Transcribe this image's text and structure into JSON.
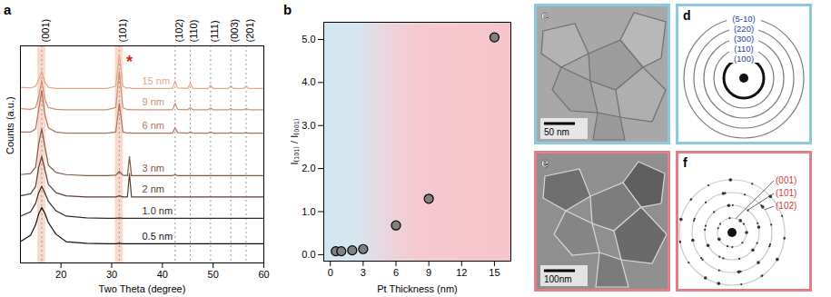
{
  "chart_data": [
    {
      "type": "line",
      "panel_label": "a",
      "xlabel": "Two Theta (degree)",
      "ylabel": "Counts (a.u.)",
      "x": [
        12,
        14,
        15,
        15.6,
        16.2,
        16.8,
        17.5,
        19,
        21,
        25,
        29,
        30.8,
        31.5,
        32.2,
        33.1,
        33.5,
        33.9,
        36,
        40,
        42,
        42.5,
        43,
        45,
        45.5,
        46,
        49,
        49.5,
        50,
        53,
        53.5,
        54,
        56,
        56.5,
        57,
        60
      ],
      "series": [
        {
          "name": "15 nm",
          "color": "#e3a78b",
          "values": [
            8.25,
            8.22,
            8.3,
            8.6,
            9.0,
            8.5,
            8.25,
            8.2,
            8.2,
            8.2,
            8.2,
            8.3,
            9.8,
            8.3,
            8.2,
            8.25,
            8.2,
            8.2,
            8.2,
            8.2,
            8.55,
            8.22,
            8.2,
            8.45,
            8.2,
            8.2,
            8.35,
            8.2,
            8.2,
            8.32,
            8.2,
            8.2,
            8.32,
            8.2,
            8.2
          ]
        },
        {
          "name": "9 nm",
          "color": "#cf8f72",
          "values": [
            7.25,
            7.22,
            7.3,
            7.8,
            8.6,
            7.7,
            7.3,
            7.22,
            7.2,
            7.2,
            7.2,
            7.3,
            9.0,
            7.3,
            7.2,
            7.22,
            7.2,
            7.2,
            7.2,
            7.2,
            7.5,
            7.22,
            7.2,
            7.3,
            7.2,
            7.2,
            7.28,
            7.2,
            7.2,
            7.25,
            7.2,
            7.2,
            7.25,
            7.2,
            7.2
          ]
        },
        {
          "name": "6 nm",
          "color": "#b0735a",
          "values": [
            6.15,
            6.15,
            6.3,
            7.2,
            8.1,
            7.0,
            6.35,
            6.15,
            6.1,
            6.1,
            6.1,
            6.15,
            7.5,
            6.15,
            6.1,
            6.12,
            6.1,
            6.1,
            6.1,
            6.1,
            6.35,
            6.12,
            6.1,
            6.15,
            6.1,
            6.1,
            6.15,
            6.1,
            6.1,
            6.12,
            6.1,
            6.1,
            6.12,
            6.1,
            6.1
          ]
        },
        {
          "name": "3 nm",
          "color": "#855744",
          "values": [
            4.15,
            4.2,
            4.5,
            5.6,
            6.3,
            5.5,
            4.6,
            4.25,
            4.15,
            4.1,
            4.1,
            4.12,
            4.3,
            4.12,
            4.1,
            5.0,
            4.1,
            4.1,
            4.1,
            4.1,
            4.15,
            4.1,
            4.1,
            4.1,
            4.1,
            4.1,
            4.1,
            4.1,
            4.1,
            4.1,
            4.1,
            4.1,
            4.1,
            4.1,
            4.1
          ]
        },
        {
          "name": "2 nm",
          "color": "#5c3e30",
          "values": [
            3.15,
            3.25,
            3.6,
            4.5,
            5.0,
            4.4,
            3.7,
            3.3,
            3.15,
            3.1,
            3.1,
            3.1,
            3.15,
            3.1,
            3.1,
            4.2,
            3.1,
            3.1,
            3.1,
            3.1,
            3.1,
            3.1,
            3.1,
            3.1,
            3.1,
            3.1,
            3.1,
            3.1,
            3.1,
            3.1,
            3.1,
            3.1,
            3.1,
            3.1,
            3.1
          ]
        },
        {
          "name": "1.0 nm",
          "color": "#382921",
          "values": [
            2.2,
            2.4,
            2.8,
            3.3,
            3.6,
            3.3,
            2.9,
            2.45,
            2.2,
            2.12,
            2.1,
            2.1,
            2.12,
            2.1,
            2.1,
            2.1,
            2.1,
            2.1,
            2.1,
            2.1,
            2.1,
            2.1,
            2.1,
            2.1,
            2.1,
            2.1,
            2.1,
            2.1,
            2.1,
            2.1,
            2.1,
            2.1,
            2.1,
            2.1,
            2.1
          ]
        },
        {
          "name": "0.5 nm",
          "color": "#111111",
          "values": [
            1.0,
            1.3,
            1.8,
            2.3,
            2.6,
            2.35,
            1.9,
            1.35,
            1.0,
            0.92,
            0.9,
            0.9,
            0.92,
            0.9,
            0.9,
            0.9,
            0.9,
            0.9,
            0.9,
            0.9,
            0.9,
            0.9,
            0.9,
            0.9,
            0.9,
            0.9,
            0.9,
            0.9,
            0.9,
            0.9,
            0.9,
            0.9,
            0.9,
            0.9,
            0.9
          ]
        }
      ],
      "xlim": [
        12,
        60
      ],
      "xticks": [
        20,
        30,
        40,
        50,
        60
      ],
      "ylim": [
        0,
        10.2
      ],
      "tick_labels": "x",
      "peaks": [
        {
          "x": 16.2,
          "label": "(001)"
        },
        {
          "x": 31.5,
          "label": "(101)"
        },
        {
          "x": 42.5,
          "label": "(102)"
        },
        {
          "x": 45.5,
          "label": "(110)"
        },
        {
          "x": 49.5,
          "label": "(111)"
        },
        {
          "x": 53.5,
          "label": "(003)"
        },
        {
          "x": 56.5,
          "label": "(201)"
        }
      ],
      "highlight_ranges": [
        [
          15.4,
          17.0
        ],
        [
          30.7,
          32.3
        ]
      ],
      "marker_annotation": {
        "x": 33.5,
        "label": "*",
        "color": "#d62728"
      }
    },
    {
      "type": "scatter",
      "panel_label": "b",
      "xlabel": "Pt Thickness (nm)",
      "ylabel": "I₍₁₀₁₎ / I₍₀₀₁₎",
      "x": [
        0.5,
        1,
        2,
        3,
        6,
        9,
        15
      ],
      "values": [
        0.08,
        0.08,
        0.1,
        0.13,
        0.68,
        1.3,
        5.05
      ],
      "xlim": [
        -0.6,
        16.5
      ],
      "xticks": [
        0,
        3,
        6,
        9,
        12,
        15
      ],
      "ylim": [
        -0.15,
        5.4
      ],
      "yticks": [
        0,
        1,
        2,
        3,
        4,
        5
      ],
      "color": "#808080",
      "marker": "circle"
    }
  ],
  "panels": [
    {
      "panel_label": "c",
      "scale_bar": "50 nm",
      "border_color": "#8cc8df"
    },
    {
      "panel_label": "d",
      "ring_labels": [
        "(5-10)",
        "(220)",
        "(300)",
        "(110)",
        "(100)"
      ],
      "label_color": "#2b3bab",
      "border_color": "#8cc8df"
    },
    {
      "panel_label": "e",
      "scale_bar": "100nm",
      "border_color": "#e27e86"
    },
    {
      "panel_label": "f",
      "ring_labels": [
        "(001)",
        "(101)",
        "(102)"
      ],
      "label_color": "#d03a34",
      "border_color": "#e27e86"
    }
  ]
}
